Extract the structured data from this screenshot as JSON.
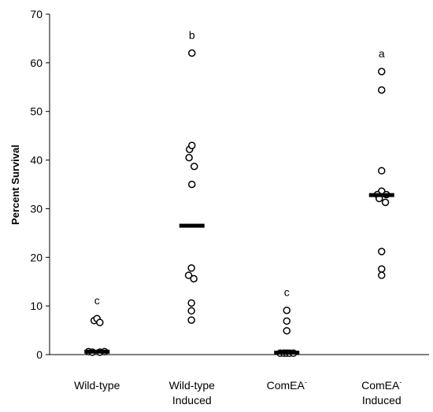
{
  "chart_data": {
    "type": "scatter",
    "title": "",
    "xlabel": "",
    "ylabel": "Percent Survival",
    "ylim": [
      0,
      70
    ],
    "yticks": [
      0,
      10,
      20,
      30,
      40,
      50,
      60,
      70
    ],
    "grid": false,
    "legend": "none",
    "categories": [
      {
        "lines": [
          "Wild-type"
        ],
        "sup": ""
      },
      {
        "lines": [
          "Wild-type",
          "Induced"
        ],
        "sup": ""
      },
      {
        "lines": [
          "ComEA"
        ],
        "sup": "-"
      },
      {
        "lines": [
          "ComEA",
          "Induced"
        ],
        "sup": "-"
      }
    ],
    "groups": [
      {
        "category_index": 0,
        "significance_label": "c",
        "mean": 0.6,
        "points": [
          {
            "offset": -0.18,
            "y": 0.6
          },
          {
            "offset": -0.1,
            "y": 0.5
          },
          {
            "offset": 0.06,
            "y": 0.5
          },
          {
            "offset": 0.16,
            "y": 0.6
          },
          {
            "offset": -0.06,
            "y": 7.0
          },
          {
            "offset": 0.0,
            "y": 7.4
          },
          {
            "offset": 0.06,
            "y": 6.6
          }
        ]
      },
      {
        "category_index": 1,
        "significance_label": "b",
        "mean": 26.5,
        "points": [
          {
            "offset": 0.0,
            "y": 62.0
          },
          {
            "offset": -0.05,
            "y": 42.2
          },
          {
            "offset": 0.0,
            "y": 43.0
          },
          {
            "offset": -0.06,
            "y": 40.5
          },
          {
            "offset": 0.05,
            "y": 38.7
          },
          {
            "offset": 0.0,
            "y": 35.0
          },
          {
            "offset": -0.01,
            "y": 17.8
          },
          {
            "offset": -0.07,
            "y": 16.3
          },
          {
            "offset": 0.04,
            "y": 15.6
          },
          {
            "offset": -0.01,
            "y": 10.6
          },
          {
            "offset": -0.01,
            "y": 9.0
          },
          {
            "offset": -0.01,
            "y": 7.1
          }
        ]
      },
      {
        "category_index": 2,
        "significance_label": "c",
        "mean": 0.4,
        "points": [
          {
            "offset": 0.0,
            "y": 9.1
          },
          {
            "offset": 0.0,
            "y": 6.9
          },
          {
            "offset": 0.0,
            "y": 4.9
          },
          {
            "offset": -0.14,
            "y": 0.3
          },
          {
            "offset": -0.06,
            "y": 0.3
          },
          {
            "offset": 0.0,
            "y": 0.3
          },
          {
            "offset": 0.06,
            "y": 0.3
          },
          {
            "offset": 0.14,
            "y": 0.3
          }
        ]
      },
      {
        "category_index": 3,
        "significance_label": "a",
        "mean": 32.8,
        "points": [
          {
            "offset": 0.0,
            "y": 58.2
          },
          {
            "offset": 0.0,
            "y": 54.4
          },
          {
            "offset": 0.0,
            "y": 37.8
          },
          {
            "offset": 0.0,
            "y": 33.6
          },
          {
            "offset": -0.09,
            "y": 32.9
          },
          {
            "offset": -0.05,
            "y": 32.1
          },
          {
            "offset": 0.1,
            "y": 32.9
          },
          {
            "offset": 0.08,
            "y": 31.3
          },
          {
            "offset": 0.0,
            "y": 21.2
          },
          {
            "offset": 0.0,
            "y": 17.6
          },
          {
            "offset": 0.0,
            "y": 16.3
          }
        ]
      }
    ]
  }
}
